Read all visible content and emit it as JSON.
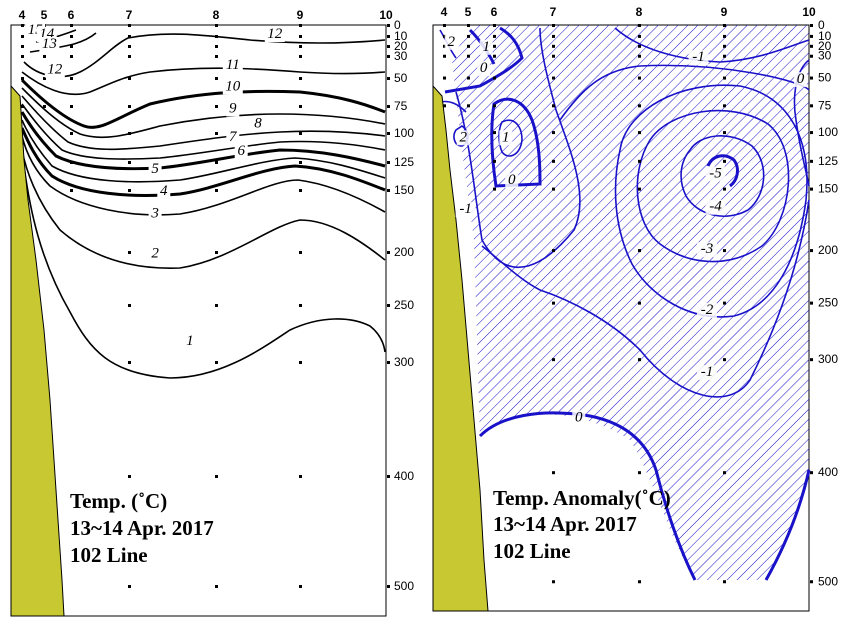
{
  "chart_data": [
    {
      "type": "contour",
      "title": [
        "Temp. (˚C)",
        "13~14 Apr. 2017",
        "102 Line"
      ],
      "stations": [
        "4",
        "5",
        "6",
        "7",
        "8",
        "9",
        "10"
      ],
      "depth_ticks": [
        0,
        10,
        20,
        30,
        50,
        75,
        100,
        125,
        150,
        200,
        250,
        300,
        400,
        500
      ],
      "depth_unit": "m",
      "contour_levels": [
        15,
        14,
        13,
        12,
        11,
        10,
        9,
        8,
        7,
        6,
        5,
        4,
        3,
        2,
        1
      ],
      "labels": [
        {
          "text": "15",
          "station": 4.6,
          "depth": 8
        },
        {
          "text": "14",
          "station": 5.1,
          "depth": 12
        },
        {
          "text": "13",
          "station": 5.2,
          "depth": 22
        },
        {
          "text": "12",
          "station": 5.4,
          "depth": 46
        },
        {
          "text": "12",
          "station": 8.7,
          "depth": 12
        },
        {
          "text": "11",
          "station": 8.2,
          "depth": 42
        },
        {
          "text": "10",
          "station": 8.2,
          "depth": 61
        },
        {
          "text": "9",
          "station": 8.2,
          "depth": 81
        },
        {
          "text": "8",
          "station": 8.5,
          "depth": 95
        },
        {
          "text": "7",
          "station": 8.2,
          "depth": 107
        },
        {
          "text": "6",
          "station": 8.3,
          "depth": 119
        },
        {
          "text": "5",
          "station": 7.3,
          "depth": 135
        },
        {
          "text": "4",
          "station": 7.4,
          "depth": 154
        },
        {
          "text": "3",
          "station": 7.3,
          "depth": 172
        },
        {
          "text": "2",
          "station": 7.3,
          "depth": 205
        },
        {
          "text": "1",
          "station": 7.7,
          "depth": 285
        }
      ]
    },
    {
      "type": "contour",
      "title": [
        "Temp. Anomaly(˚C)",
        "13~14 Apr. 2017",
        "102 Line"
      ],
      "stations": [
        "4",
        "5",
        "6",
        "7",
        "8",
        "9",
        "10"
      ],
      "depth_ticks": [
        0,
        10,
        20,
        30,
        50,
        75,
        100,
        125,
        150,
        200,
        250,
        300,
        400,
        500
      ],
      "depth_unit": "m",
      "contour_levels": [
        2,
        1,
        0,
        -1,
        -2,
        -3,
        -4,
        -5
      ],
      "shading": "hatched where anomaly < 0",
      "labels": [
        {
          "text": "2",
          "station": 4.3,
          "depth": 20
        },
        {
          "text": "1",
          "station": 5.7,
          "depth": 25
        },
        {
          "text": "0",
          "station": 5.6,
          "depth": 45
        },
        {
          "text": "-1",
          "station": 8.7,
          "depth": 35
        },
        {
          "text": "0",
          "station": 9.9,
          "depth": 55
        },
        {
          "text": "2",
          "station": 4.8,
          "depth": 108
        },
        {
          "text": "1",
          "station": 6.2,
          "depth": 108
        },
        {
          "text": "0",
          "station": 6.3,
          "depth": 146
        },
        {
          "text": "-1",
          "station": 4.9,
          "depth": 170
        },
        {
          "text": "-5",
          "station": 8.9,
          "depth": 140
        },
        {
          "text": "-4",
          "station": 8.9,
          "depth": 168
        },
        {
          "text": "-3",
          "station": 8.8,
          "depth": 203
        },
        {
          "text": "-2",
          "station": 8.8,
          "depth": 260
        },
        {
          "text": "-1",
          "station": 8.8,
          "depth": 315
        },
        {
          "text": "0",
          "station": 7.3,
          "depth": 355
        }
      ]
    }
  ]
}
